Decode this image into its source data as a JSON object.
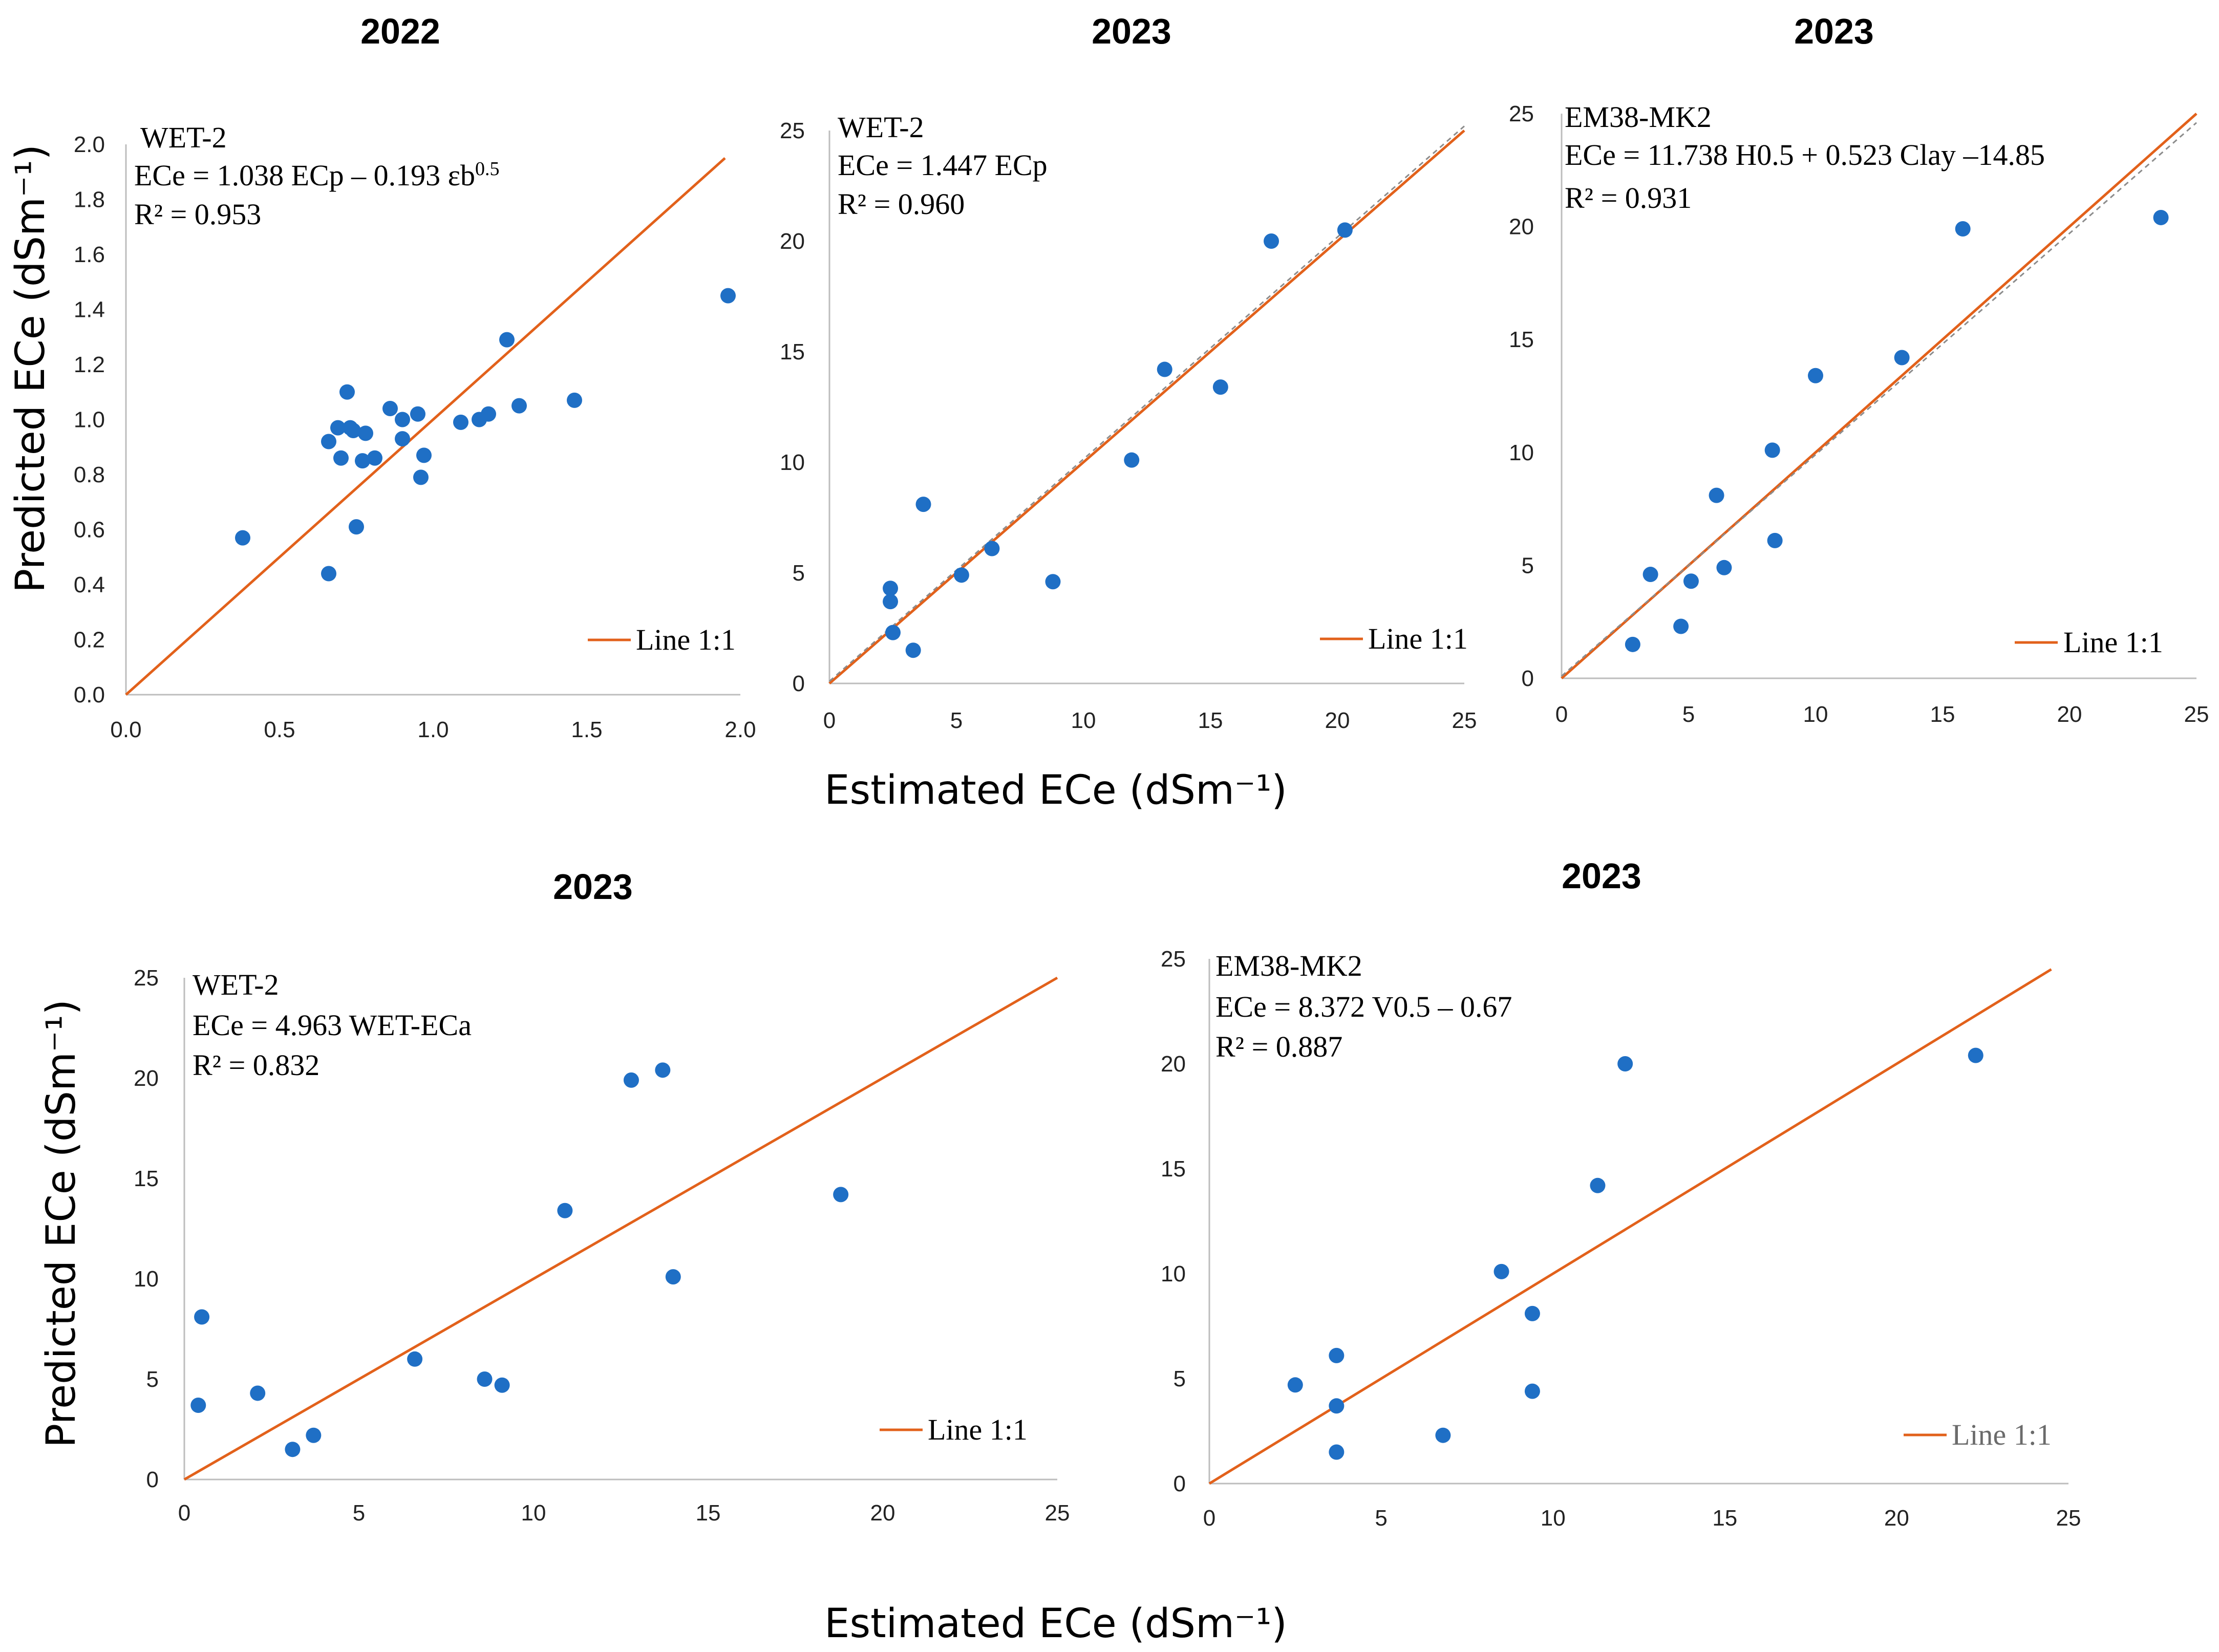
{
  "axis_titles": {
    "y_top": "Predicted ECe (dSm⁻¹)",
    "y_bottom": "Predicted ECe (dSm⁻¹)",
    "x_top": "Estimated ECe (dSm⁻¹)",
    "x_bottom": "Estimated ECe (dSm⁻¹)"
  },
  "colors": {
    "points": "#1f6fc5",
    "line": "#e2611b",
    "trend": "#8c8c8c",
    "axis": "#bdbdbd"
  },
  "chart_data": [
    {
      "type": "scatter",
      "title": "2022",
      "sensor": "WET-2",
      "equation": "ECe = 1.038 ECp – 0.193 εb",
      "equation_sup": "0.5",
      "r2": "R² = 0.953",
      "legend": "Line 1:1",
      "xlim": [
        0,
        2.0
      ],
      "ylim": [
        0,
        2.0
      ],
      "xticks": [
        "0.0",
        "0.5",
        "1.0",
        "1.5",
        "2.0"
      ],
      "xtick_values": [
        0,
        0.5,
        1.0,
        1.5,
        2.0
      ],
      "yticks": [
        "0.0",
        "0.2",
        "0.4",
        "0.6",
        "0.8",
        "1.0",
        "1.2",
        "1.4",
        "1.6",
        "1.8",
        "2.0"
      ],
      "ytick_values": [
        0,
        0.2,
        0.4,
        0.6,
        0.8,
        1.0,
        1.2,
        1.4,
        1.6,
        1.8,
        2.0
      ],
      "line_end": 1.95,
      "trend": null,
      "x": [
        0.38,
        0.66,
        0.66,
        0.69,
        0.7,
        0.72,
        0.73,
        0.74,
        0.75,
        0.77,
        0.78,
        0.81,
        0.86,
        0.9,
        0.9,
        0.95,
        0.96,
        0.97,
        1.09,
        1.15,
        1.18,
        1.24,
        1.28,
        1.46,
        1.96
      ],
      "y": [
        0.57,
        0.92,
        0.44,
        0.97,
        0.86,
        1.1,
        0.97,
        0.96,
        0.61,
        0.85,
        0.95,
        0.86,
        1.04,
        0.93,
        1.0,
        1.02,
        0.79,
        0.87,
        0.99,
        1.0,
        1.02,
        1.29,
        1.05,
        1.07,
        1.45
      ]
    },
    {
      "type": "scatter",
      "title": "2023",
      "sensor": "WET-2",
      "equation": "ECe = 1.447 ECp",
      "equation_sup": "",
      "r2": "R² = 0.960",
      "legend": "Line 1:1",
      "xlim": [
        0,
        25
      ],
      "ylim": [
        0,
        25
      ],
      "xticks": [
        "0",
        "5",
        "10",
        "15",
        "20",
        "25"
      ],
      "xtick_values": [
        0,
        5,
        10,
        15,
        20,
        25
      ],
      "yticks": [
        "0",
        "5",
        "10",
        "15",
        "20",
        "25"
      ],
      "ytick_values": [
        0,
        5,
        10,
        15,
        20,
        25
      ],
      "line_end": 25,
      "trend": [
        [
          0,
          0.1
        ],
        [
          25,
          25.2
        ]
      ],
      "x": [
        2.4,
        2.4,
        2.5,
        3.3,
        3.7,
        5.2,
        6.4,
        8.8,
        11.9,
        13.2,
        15.4,
        17.4,
        20.3
      ],
      "y": [
        4.3,
        3.7,
        2.3,
        1.5,
        8.1,
        4.9,
        6.1,
        4.6,
        10.1,
        14.2,
        13.4,
        20.0,
        20.5
      ]
    },
    {
      "type": "scatter",
      "title": "2023",
      "sensor": "EM38-MK2",
      "equation": "ECe = 11.738 H0.5 + 0.523 Clay –14.85",
      "equation_sup": "",
      "r2": "R² = 0.931",
      "legend": "Line 1:1",
      "xlim": [
        0,
        25
      ],
      "ylim": [
        0,
        25
      ],
      "xticks": [
        "0",
        "5",
        "10",
        "15",
        "20",
        "25"
      ],
      "xtick_values": [
        0,
        5,
        10,
        15,
        20,
        25
      ],
      "yticks": [
        "0",
        "5",
        "10",
        "15",
        "20",
        "25"
      ],
      "ytick_values": [
        0,
        5,
        10,
        15,
        20,
        25
      ],
      "line_end": 25,
      "trend": [
        [
          0,
          0.1
        ],
        [
          25,
          24.6
        ]
      ],
      "x": [
        2.8,
        3.5,
        4.7,
        5.1,
        6.1,
        6.4,
        8.3,
        8.4,
        10.0,
        13.4,
        15.8,
        23.6
      ],
      "y": [
        1.5,
        4.6,
        2.3,
        4.3,
        8.1,
        4.9,
        10.1,
        6.1,
        13.4,
        14.2,
        19.9,
        20.4
      ]
    },
    {
      "type": "scatter",
      "title": "2023",
      "sensor": "WET-2",
      "equation": "ECe = 4.963 WET-ECa",
      "equation_sup": "",
      "r2": "R² = 0.832",
      "legend": "Line 1:1",
      "xlim": [
        0,
        25
      ],
      "ylim": [
        0,
        25
      ],
      "xticks": [
        "0",
        "5",
        "10",
        "15",
        "20",
        "25"
      ],
      "xtick_values": [
        0,
        5,
        10,
        15,
        20,
        25
      ],
      "yticks": [
        "0",
        "5",
        "10",
        "15",
        "20",
        "25"
      ],
      "ytick_values": [
        0,
        5,
        10,
        15,
        20,
        25
      ],
      "line_end": 25,
      "trend": null,
      "x": [
        0.5,
        0.4,
        2.1,
        3.1,
        3.7,
        6.6,
        8.6,
        9.1,
        10.9,
        12.8,
        13.7,
        14.0,
        18.8
      ],
      "y": [
        8.1,
        3.7,
        4.3,
        1.5,
        2.2,
        6.0,
        5.0,
        4.7,
        13.4,
        19.9,
        20.4,
        10.1,
        14.2
      ]
    },
    {
      "type": "scatter",
      "title": "2023",
      "sensor": "EM38-MK2",
      "equation": "ECe = 8.372 V0.5 – 0.67",
      "equation_sup": "",
      "r2": "R² = 0.887",
      "legend": "Line 1:1",
      "xlim": [
        0,
        25
      ],
      "ylim": [
        0,
        25
      ],
      "xticks": [
        "0",
        "5",
        "10",
        "15",
        "20",
        "25"
      ],
      "xtick_values": [
        0,
        5,
        10,
        15,
        20,
        25
      ],
      "yticks": [
        "0",
        "5",
        "10",
        "15",
        "20",
        "25"
      ],
      "ytick_values": [
        0,
        5,
        10,
        15,
        20,
        25
      ],
      "line_end": 24.5,
      "trend": null,
      "x": [
        2.5,
        3.7,
        3.7,
        3.7,
        6.8,
        8.5,
        9.4,
        9.4,
        11.3,
        12.1,
        22.3
      ],
      "y": [
        4.7,
        6.1,
        3.7,
        1.5,
        2.3,
        10.1,
        8.1,
        4.4,
        14.2,
        20.0,
        20.4
      ]
    }
  ]
}
